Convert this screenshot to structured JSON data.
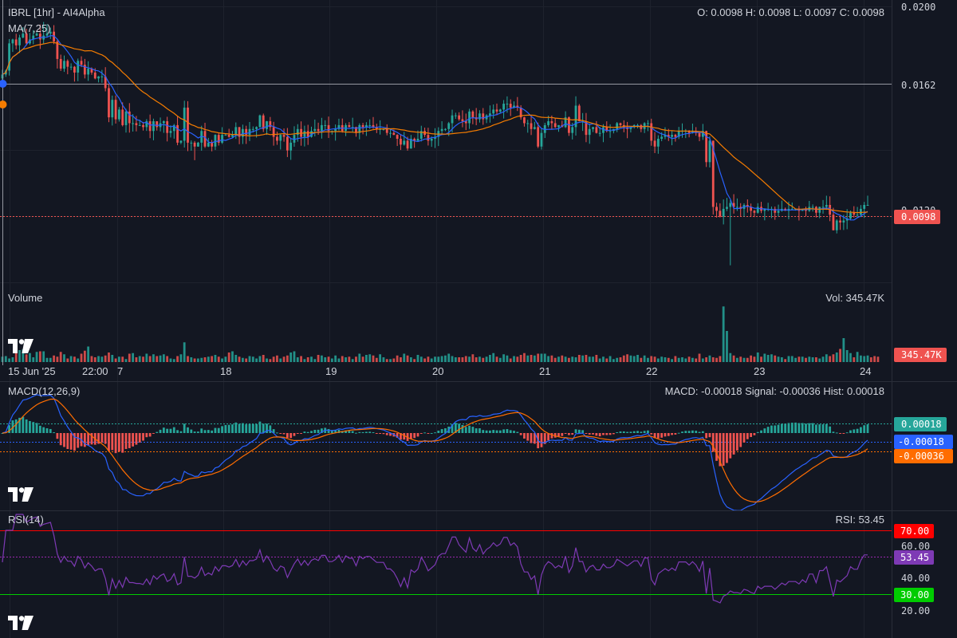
{
  "header": {
    "symbol_title": "IBRL [1hr] - AI4Alpha",
    "ma_label": "MA(7,25)",
    "ohlc": "O: 0.0098 H: 0.0098 L: 0.0097 C: 0.0098"
  },
  "volume_panel": {
    "label": "Volume",
    "value_text": "Vol: 345.47K",
    "tag": "345.47K"
  },
  "macd_panel": {
    "label": "MACD(12,26,9)",
    "value_text": "MACD: -0.00018 Signal: -0.00036 Hist: 0.00018",
    "tags": {
      "hist": "0.00018",
      "macd": "-0.00018",
      "signal": "-0.00036"
    }
  },
  "rsi_panel": {
    "label": "RSI(14)",
    "value_text": "RSI: 53.45",
    "tags": {
      "overbought": "70.00",
      "value": "53.45",
      "oversold": "30.00"
    }
  },
  "price_axis": {
    "ticks": [
      "0.0200",
      "0.0162",
      "0.0120"
    ],
    "current_tag": "0.0098"
  },
  "rsi_axis": {
    "ticks": [
      "60.00",
      "40.00",
      "20.00"
    ]
  },
  "time_axis": {
    "ticks": [
      "15 Jun '25",
      "22:00",
      "7",
      "18",
      "19",
      "20",
      "21",
      "22",
      "23",
      "24"
    ]
  },
  "colors": {
    "background": "#131722",
    "up": "#26a69a",
    "down": "#ef5350",
    "ma7": "#2962ff",
    "ma25": "#f57c00",
    "rsi_line": "#7e3ab5",
    "tag_hist": "#26a69a",
    "tag_macd": "#2962ff",
    "tag_signal": "#ff6d00",
    "tag_rsi_ob": "#ff0000",
    "tag_rsi_value": "#7e3ab5",
    "tag_rsi_os": "#00cc00"
  },
  "chart_data": [
    {
      "type": "candlestick",
      "title": "IBRL [1hr] - AI4Alpha",
      "ylim": [
        0.0064,
        0.02
      ],
      "x_ticks": [
        "15 Jun '25",
        "22:00",
        "7",
        "18",
        "19",
        "20",
        "21",
        "22",
        "23",
        "24"
      ],
      "y_ticks": [
        0.02,
        0.0162,
        0.012
      ],
      "last_price": 0.0098,
      "reference_line": 0.0162,
      "close": [
        0.0165,
        0.0167,
        0.0181,
        0.0183,
        0.018,
        0.0184,
        0.0186,
        0.0181,
        0.0183,
        0.0185,
        0.0186,
        0.0183,
        0.0185,
        0.0186,
        0.0187,
        0.0182,
        0.0173,
        0.0168,
        0.0172,
        0.0169,
        0.0169,
        0.0166,
        0.0172,
        0.017,
        0.0165,
        0.0168,
        0.0166,
        0.0163,
        0.0164,
        0.0164,
        0.0158,
        0.0143,
        0.0152,
        0.0142,
        0.0147,
        0.0139,
        0.0146,
        0.014,
        0.014,
        0.0139,
        0.0139,
        0.0138,
        0.0141,
        0.0136,
        0.0141,
        0.0138,
        0.014,
        0.0141,
        0.0135,
        0.0136,
        0.0139,
        0.013,
        0.0131,
        0.0148,
        0.013,
        0.013,
        0.0128,
        0.013,
        0.0136,
        0.0128,
        0.013,
        0.0128,
        0.0134,
        0.013,
        0.0134,
        0.0134,
        0.0133,
        0.0134,
        0.0138,
        0.0133,
        0.0137,
        0.0134,
        0.0137,
        0.0137,
        0.0138,
        0.0144,
        0.0137,
        0.0141,
        0.0138,
        0.0133,
        0.0131,
        0.0134,
        0.0133,
        0.0126,
        0.013,
        0.0134,
        0.0137,
        0.0133,
        0.0136,
        0.0133,
        0.0136,
        0.0137,
        0.0136,
        0.0139,
        0.0139,
        0.0136,
        0.0136,
        0.0137,
        0.0139,
        0.0136,
        0.0139,
        0.0138,
        0.0138,
        0.0135,
        0.0139,
        0.0138,
        0.0139,
        0.0139,
        0.0138,
        0.0137,
        0.0137,
        0.0137,
        0.0135,
        0.0135,
        0.0134,
        0.0132,
        0.0129,
        0.0131,
        0.0127,
        0.0132,
        0.0131,
        0.0132,
        0.0136,
        0.0134,
        0.0131,
        0.0132,
        0.0133,
        0.0136,
        0.0137,
        0.0137,
        0.014,
        0.0144,
        0.0144,
        0.0142,
        0.0141,
        0.014,
        0.0146,
        0.0143,
        0.0142,
        0.0145,
        0.0142,
        0.0144,
        0.0145,
        0.0147,
        0.0146,
        0.0147,
        0.015,
        0.015,
        0.0148,
        0.0149,
        0.0148,
        0.0143,
        0.014,
        0.014,
        0.0137,
        0.0138,
        0.0128,
        0.0135,
        0.0139,
        0.0141,
        0.014,
        0.0138,
        0.0139,
        0.0138,
        0.0143,
        0.0135,
        0.0138,
        0.0149,
        0.0141,
        0.0141,
        0.0134,
        0.0137,
        0.0138,
        0.0135,
        0.0135,
        0.0138,
        0.0136,
        0.0136,
        0.0137,
        0.014,
        0.0139,
        0.0138,
        0.0137,
        0.0138,
        0.0139,
        0.0139,
        0.0137,
        0.014,
        0.014,
        0.0131,
        0.0128,
        0.0132,
        0.0133,
        0.0134,
        0.0133,
        0.0134,
        0.0133,
        0.0136,
        0.0136,
        0.0136,
        0.0135,
        0.0136,
        0.0135,
        0.0133,
        0.0136,
        0.012,
        0.0131,
        0.0097,
        0.0095,
        0.0092,
        0.0096,
        0.0097,
        0.0099,
        0.0097,
        0.0097,
        0.0096,
        0.0098,
        0.0097,
        0.0095,
        0.0094,
        0.0097,
        0.0095,
        0.0096,
        0.0096,
        0.0096,
        0.0094,
        0.0095,
        0.0096,
        0.0095,
        0.0096,
        0.0096,
        0.0096,
        0.0095,
        0.0096,
        0.0095,
        0.0097,
        0.0097,
        0.0094,
        0.0097,
        0.0097,
        0.0098,
        0.0093,
        0.0085,
        0.009,
        0.0089,
        0.009,
        0.0091,
        0.0094,
        0.0093,
        0.0093,
        0.0096,
        0.0098,
        0.0098
      ],
      "series": [
        {
          "name": "MA(7)",
          "periods": 7
        },
        {
          "name": "MA(25)",
          "periods": 25
        }
      ]
    },
    {
      "type": "bar",
      "ylabel": "Volume",
      "last_value": "345.47K",
      "volume_relative": [
        0.9,
        1.0,
        0.6,
        0.8,
        1.7,
        2.0,
        2.1,
        1.3,
        1.5,
        0.8,
        1.7,
        1.8,
        1.8,
        0.7,
        0.7,
        1.1,
        0.9,
        1.7,
        1.3,
        0.6,
        1.0,
        0.9,
        0.6,
        1.4,
        1.9,
        2.6,
        1.0,
        0.8,
        1.0,
        0.9,
        1.1,
        1.6,
        1.2,
        0.6,
        0.9,
        0.9,
        0.5,
        1.4,
        1.5,
        0.8,
        1.0,
        0.9,
        1.4,
        1.0,
        1.3,
        1.0,
        1.1,
        1.3,
        1.0,
        0.6,
        0.5,
        1.0,
        1.3,
        3.3,
        1.0,
        0.8,
        0.6,
        0.6,
        0.7,
        0.8,
        0.9,
        1.0,
        1.2,
        0.9,
        0.6,
        0.9,
        1.6,
        1.8,
        1.2,
        0.9,
        0.7,
        0.6,
        1.0,
        0.9,
        0.6,
        1.0,
        1.2,
        0.6,
        0.5,
        0.9,
        1.1,
        0.6,
        0.9,
        1.1,
        1.6,
        1.8,
        0.8,
        1.0,
        0.5,
        0.8,
        0.9,
        0.5,
        1.2,
        1.1,
        0.8,
        0.9,
        0.6,
        1.1,
        0.6,
        1.0,
        0.8,
        0.9,
        0.5,
        0.9,
        1.4,
        0.9,
        1.2,
        1.3,
        1.1,
        0.7,
        1.3,
        0.8,
        0.5,
        0.5,
        0.6,
        1.1,
        0.8,
        1.4,
        1.1,
        0.8,
        0.5,
        1.2,
        0.9,
        0.6,
        0.9,
        0.6,
        0.9,
        0.9,
        1.0,
        1.1,
        1.4,
        1.0,
        0.8,
        0.8,
        0.8,
        1.0,
        0.9,
        1.3,
        0.8,
        0.9,
        0.7,
        0.9,
        1.2,
        1.5,
        0.9,
        0.7,
        1.3,
        1.1,
        0.6,
        1.0,
        0.9,
        1.2,
        1.5,
        1.1,
        1.2,
        1.1,
        1.4,
        1.4,
        1.4,
        1.0,
        1.1,
        0.7,
        0.9,
        1.1,
        0.9,
        0.7,
        0.9,
        0.8,
        1.2,
        1.1,
        1.2,
        0.9,
        0.9,
        1.2,
        0.6,
        0.9,
        0.6,
        1.0,
        0.5,
        0.7,
        0.8,
        1.1,
        1.3,
        1.1,
        1.0,
        1.2,
        0.7,
        1.1,
        0.7,
        1.0,
        0.9,
        0.6,
        0.9,
        0.8,
        0.7,
        0.5,
        1.0,
        0.7,
        0.8,
        0.6,
        0.9,
        0.7,
        0.6,
        1.4,
        0.6,
        0.8,
        1.1,
        0.8,
        0.7,
        1.0,
        9.3,
        5.2,
        1.5,
        1.1,
        0.7,
        0.9,
        0.7,
        0.7,
        1.1,
        0.9,
        1.6,
        0.9,
        1.4,
        1.2,
        1.3,
        1.1,
        0.9,
        0.8,
        0.5,
        1.0,
        1.0,
        0.7,
        0.9,
        0.9,
        0.7,
        0.9,
        0.8,
        0.8,
        0.6,
        0.9,
        1.3,
        1.0,
        1.3,
        1.6,
        2.2,
        4.0,
        2.0,
        1.5,
        0.8,
        1.7,
        1.1,
        1.0,
        1.1,
        0.8,
        1.0,
        0.9
      ]
    },
    {
      "type": "line",
      "title": "MACD(12,26,9)",
      "last_values": {
        "macd": -0.00018,
        "signal": -0.00036,
        "hist": 0.00018
      },
      "series": [
        {
          "name": "MACD"
        },
        {
          "name": "Signal"
        },
        {
          "name": "Hist"
        }
      ]
    },
    {
      "type": "line",
      "title": "RSI(14)",
      "ylim": [
        10,
        80
      ],
      "y_ticks": [
        70,
        60,
        53.45,
        40,
        30,
        20
      ],
      "last_value": 53.45,
      "overbought": 70,
      "oversold": 30
    }
  ]
}
